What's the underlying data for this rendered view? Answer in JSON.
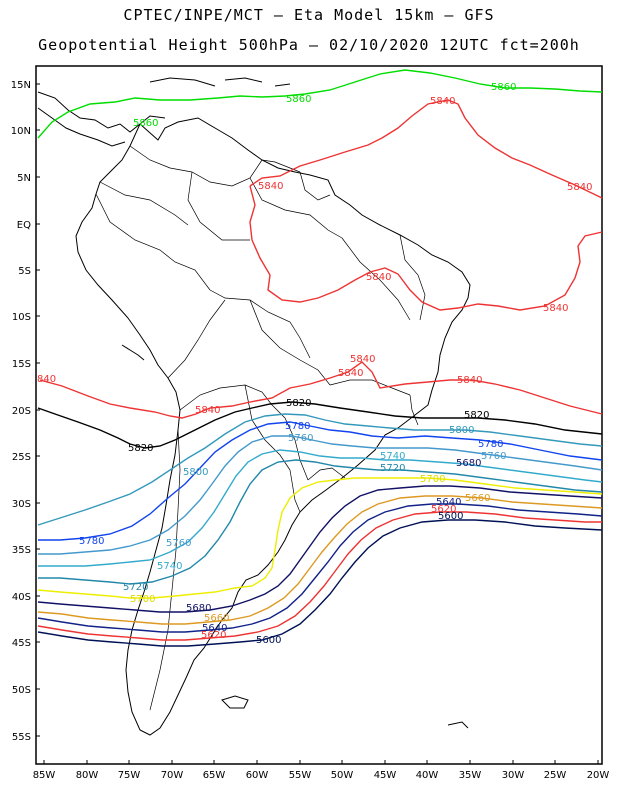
{
  "title_line1": "CPTEC/INPE/MCT –  Eta Model 15km – GFS",
  "title_line2": "Geopotential Height 500hPa – 02/10/2020 12UTC fct=200h",
  "lat_labels": [
    "15N",
    "10N",
    "5N",
    "EQ",
    "5S",
    "10S",
    "15S",
    "20S",
    "25S",
    "30S",
    "35S",
    "40S",
    "45S",
    "50S",
    "55S"
  ],
  "lon_labels": [
    "85W",
    "80W",
    "75W",
    "70W",
    "65W",
    "60W",
    "55W",
    "50W",
    "45W",
    "40W",
    "35W",
    "30W",
    "25W",
    "20W"
  ],
  "colors": {
    "c5860": "#00dd00",
    "c5840": "#ee3333",
    "c5820": "#000000",
    "c5800": "#3399bb",
    "c5780": "#1144ee",
    "c5760": "#4499cc",
    "c5740": "#33aacc",
    "c5720": "#2288aa",
    "c5700": "#eeee00",
    "c5680": "#111166",
    "c5660": "#dd9922",
    "c5640": "#112288",
    "c5620": "#ee3333",
    "c5600": "#001155",
    "coast": "#000000",
    "border": "#000000"
  },
  "contour_labels": [
    {
      "id": "l5860a",
      "text": "5860"
    },
    {
      "id": "l5860b",
      "text": "5860"
    },
    {
      "id": "l5860c",
      "text": "5860"
    },
    {
      "id": "l5840a",
      "text": "5840"
    },
    {
      "id": "l5840b",
      "text": "5840"
    },
    {
      "id": "l5840c",
      "text": "5840"
    },
    {
      "id": "l5840d",
      "text": "5840"
    },
    {
      "id": "l5840e",
      "text": "5840"
    },
    {
      "id": "l5840f",
      "text": "5840"
    },
    {
      "id": "l5840g",
      "text": "5840"
    },
    {
      "id": "l5840h",
      "text": "5840"
    },
    {
      "id": "l5840i",
      "text": "5840"
    },
    {
      "id": "l5840j",
      "text": "840"
    },
    {
      "id": "l5820a",
      "text": "5820"
    },
    {
      "id": "l5820b",
      "text": "5820"
    },
    {
      "id": "l5820c",
      "text": "5820"
    },
    {
      "id": "l5800a",
      "text": "5800"
    },
    {
      "id": "l5800b",
      "text": "5800"
    },
    {
      "id": "l5780a",
      "text": "5780"
    },
    {
      "id": "l5780b",
      "text": "5780"
    },
    {
      "id": "l5780c",
      "text": "5780"
    },
    {
      "id": "l5760a",
      "text": "5760"
    },
    {
      "id": "l5760b",
      "text": "5760"
    },
    {
      "id": "l5760c",
      "text": "5760"
    },
    {
      "id": "l5740a",
      "text": "5740"
    },
    {
      "id": "l5740b",
      "text": "5740"
    },
    {
      "id": "l5720a",
      "text": "5720"
    },
    {
      "id": "l5720b",
      "text": "5720"
    },
    {
      "id": "l5700a",
      "text": "5700"
    },
    {
      "id": "l5700b",
      "text": "5700"
    },
    {
      "id": "l5680a",
      "text": "5680"
    },
    {
      "id": "l5680b",
      "text": "5680"
    },
    {
      "id": "l5660a",
      "text": "5660"
    },
    {
      "id": "l5660b",
      "text": "5660"
    },
    {
      "id": "l5640a",
      "text": "5640"
    },
    {
      "id": "l5640b",
      "text": "5640"
    },
    {
      "id": "l5620a",
      "text": "5620"
    },
    {
      "id": "l5620b",
      "text": "5620"
    },
    {
      "id": "l5600a",
      "text": "5600"
    },
    {
      "id": "l5600b",
      "text": "5600"
    }
  ]
}
